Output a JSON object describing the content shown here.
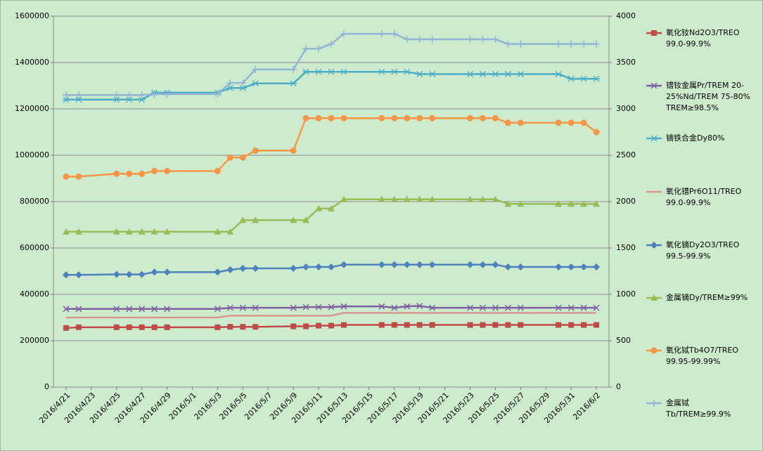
{
  "chart_data": {
    "type": "line",
    "x": [
      "2016/4/21",
      "2016/4/22",
      "2016/4/25",
      "2016/4/26",
      "2016/4/27",
      "2016/4/28",
      "2016/4/29",
      "2016/5/3",
      "2016/5/4",
      "2016/5/5",
      "2016/5/6",
      "2016/5/9",
      "2016/5/10",
      "2016/5/11",
      "2016/5/12",
      "2016/5/13",
      "2016/5/16",
      "2016/5/17",
      "2016/5/18",
      "2016/5/19",
      "2016/5/20",
      "2016/5/23",
      "2016/5/24",
      "2016/5/25",
      "2016/5/26",
      "2016/5/27",
      "2016/5/30",
      "2016/5/31",
      "2016/6/1",
      "2016/6/2"
    ],
    "xlim": [
      "2016/4/20",
      "2016/6/3"
    ],
    "xticks": [
      "2016/4/21",
      "2016/4/23",
      "2016/4/25",
      "2016/4/27",
      "2016/4/29",
      "2016/5/1",
      "2016/5/3",
      "2016/5/5",
      "2016/5/7",
      "2016/5/9",
      "2016/5/11",
      "2016/5/13",
      "2016/5/15",
      "2016/5/17",
      "2016/5/19",
      "2016/5/21",
      "2016/5/23",
      "2016/5/25",
      "2016/5/27",
      "2016/5/29",
      "2016/5/31",
      "2016/6/2"
    ],
    "ylim": [
      0,
      1600000
    ],
    "yticks": [
      0,
      200000,
      400000,
      600000,
      800000,
      1000000,
      1200000,
      1400000,
      1600000
    ],
    "y2lim": [
      0,
      4000
    ],
    "y2ticks": [
      0,
      500,
      1000,
      1500,
      2000,
      2500,
      3000,
      3500,
      4000
    ],
    "grid": true,
    "series": [
      {
        "name": "氧化钕Nd2O3/TREO 99.0-99.9%",
        "color": "#be4b48",
        "marker": "square",
        "values": [
          255000,
          258000,
          258000,
          258000,
          258000,
          258000,
          258000,
          258000,
          260000,
          260000,
          260000,
          262000,
          262000,
          265000,
          265000,
          268000,
          268000,
          268000,
          268000,
          268000,
          268000,
          268000,
          268000,
          268000,
          268000,
          268000,
          268000,
          268000,
          268000,
          268000
        ]
      },
      {
        "name": "镨钕金属Pr/TREM 20-25%Nd/TREM 75-80% TREM≥98.5%",
        "color": "#7d60a0",
        "marker": "x",
        "values": [
          337000,
          337000,
          337000,
          337000,
          337000,
          337000,
          337000,
          337000,
          342000,
          342000,
          342000,
          342000,
          345000,
          345000,
          345000,
          348000,
          348000,
          342000,
          348000,
          350000,
          342000,
          342000,
          342000,
          342000,
          342000,
          342000,
          342000,
          342000,
          342000,
          342000
        ]
      },
      {
        "name": "镝铁合金Dy80%",
        "color": "#4aacc6",
        "marker": "asterisk",
        "values": [
          1240000,
          1240000,
          1240000,
          1240000,
          1240000,
          1270000,
          1270000,
          1270000,
          1290000,
          1290000,
          1310000,
          1310000,
          1360000,
          1360000,
          1360000,
          1360000,
          1360000,
          1360000,
          1360000,
          1350000,
          1350000,
          1350000,
          1350000,
          1350000,
          1350000,
          1350000,
          1350000,
          1330000,
          1330000,
          1330000
        ]
      },
      {
        "name": "氧化镨Pr6O11/TREO 99.0-99.9%",
        "color": "#d99694",
        "marker": "none",
        "values": [
          300000,
          300000,
          300000,
          300000,
          300000,
          300000,
          300000,
          300000,
          308000,
          308000,
          308000,
          308000,
          308000,
          308000,
          308000,
          320000,
          320000,
          320000,
          320000,
          320000,
          320000,
          320000,
          320000,
          320000,
          320000,
          320000,
          320000,
          320000,
          320000,
          320000
        ]
      },
      {
        "name": "氧化镝Dy2O3/TREO 99.5-99.9%",
        "color": "#4f81bd",
        "marker": "diamond",
        "axis": "y2",
        "values": [
          1210,
          1210,
          1215,
          1215,
          1215,
          1240,
          1240,
          1240,
          1265,
          1280,
          1280,
          1280,
          1295,
          1295,
          1295,
          1320,
          1320,
          1320,
          1320,
          1320,
          1320,
          1320,
          1320,
          1320,
          1295,
          1295,
          1295,
          1295,
          1295,
          1295
        ]
      },
      {
        "name": "金属镝Dy/TREM≥99%",
        "color": "#9bbb59",
        "marker": "triangle",
        "axis": "y2",
        "values": [
          1675,
          1675,
          1675,
          1675,
          1675,
          1675,
          1675,
          1675,
          1675,
          1800,
          1800,
          1800,
          1800,
          1925,
          1925,
          2025,
          2025,
          2025,
          2025,
          2025,
          2025,
          2025,
          2025,
          2025,
          1975,
          1975,
          1975,
          1975,
          1975,
          1975
        ]
      },
      {
        "name": "氧化铽Tb4O7/TREO 99.95-99.99%",
        "color": "#f79646",
        "marker": "circle",
        "axis": "y2",
        "values": [
          2270,
          2270,
          2300,
          2300,
          2300,
          2330,
          2330,
          2330,
          2475,
          2475,
          2550,
          2550,
          2900,
          2900,
          2900,
          2900,
          2900,
          2900,
          2900,
          2900,
          2900,
          2900,
          2900,
          2900,
          2850,
          2850,
          2850,
          2850,
          2850,
          2750
        ]
      },
      {
        "name": "金属铽 Tb/TREM≥99.9%",
        "color": "#95b3d7",
        "marker": "plus",
        "axis": "y2",
        "values": [
          3150,
          3150,
          3150,
          3150,
          3150,
          3160,
          3160,
          3160,
          3280,
          3280,
          3425,
          3425,
          3650,
          3650,
          3700,
          3810,
          3810,
          3810,
          3750,
          3750,
          3750,
          3750,
          3750,
          3750,
          3700,
          3700,
          3700,
          3700,
          3700,
          3700
        ]
      }
    ]
  }
}
